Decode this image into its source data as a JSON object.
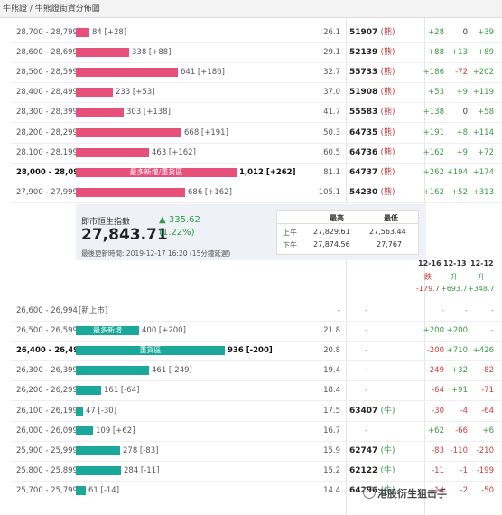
{
  "breadcrumb": "牛熊證 / 牛熊證街貨分佈圖",
  "bear_rows": [
    {
      "range": "28,700 - 28,799",
      "bar_value": 84,
      "bar_label": "84 [+28]",
      "bar_text": "",
      "ratio": "26.1",
      "strike": "51907",
      "tag": "(熊)",
      "c1": "+28",
      "c2": "0",
      "c3": "+39",
      "bold": false
    },
    {
      "range": "28,600 - 28,699",
      "bar_value": 338,
      "bar_label": "338 [+88]",
      "bar_text": "",
      "ratio": "29.1",
      "strike": "52139",
      "tag": "(熊)",
      "c1": "+88",
      "c2": "+13",
      "c3": "+89",
      "bold": false
    },
    {
      "range": "28,500 - 28,599",
      "bar_value": 641,
      "bar_label": "641 [+186]",
      "bar_text": "",
      "ratio": "32.7",
      "strike": "55733",
      "tag": "(熊)",
      "c1": "+186",
      "c2": "-72",
      "c3": "+202",
      "bold": false
    },
    {
      "range": "28,400 - 28,499",
      "bar_value": 233,
      "bar_label": "233 [+53]",
      "bar_text": "",
      "ratio": "37.0",
      "strike": "51908",
      "tag": "(熊)",
      "c1": "+53",
      "c2": "+9",
      "c3": "+119",
      "bold": false
    },
    {
      "range": "28,300 - 28,399",
      "bar_value": 303,
      "bar_label": "303 [+138]",
      "bar_text": "",
      "ratio": "41.7",
      "strike": "55583",
      "tag": "(熊)",
      "c1": "+138",
      "c2": "0",
      "c3": "+58",
      "bold": false
    },
    {
      "range": "28,200 - 28,299",
      "bar_value": 668,
      "bar_label": "668 [+191]",
      "bar_text": "",
      "ratio": "50.3",
      "strike": "64735",
      "tag": "(熊)",
      "c1": "+191",
      "c2": "+8",
      "c3": "+114",
      "bold": false
    },
    {
      "range": "28,100 - 28,199",
      "bar_value": 463,
      "bar_label": "463 [+162]",
      "bar_text": "",
      "ratio": "60.5",
      "strike": "64736",
      "tag": "(熊)",
      "c1": "+162",
      "c2": "+9",
      "c3": "+72",
      "bold": false
    },
    {
      "range": "28,000 - 28,099",
      "bar_value": 1012,
      "bar_label": "1,012 [+262]",
      "bar_text": "最多新增/重貨區",
      "ratio": "81.1",
      "strike": "64737",
      "tag": "(熊)",
      "c1": "+262",
      "c2": "+194",
      "c3": "+174",
      "bold": true
    },
    {
      "range": "27,900 - 27,999",
      "bar_value": 686,
      "bar_label": "686 [+162]",
      "bar_text": "",
      "ratio": "105.1",
      "strike": "54230",
      "tag": "(熊)",
      "c1": "+162",
      "c2": "+52",
      "c3": "+313",
      "bold": false
    }
  ],
  "index_panel": {
    "title": "即市恒生指數",
    "value": "27,843.71",
    "change": "▲ 335.62",
    "pct": "(1.22%)",
    "updated": "最後更新時間: 2019-12-17 16:20 (15分鐘延遲)",
    "high_header": "最高",
    "low_header": "最低",
    "am_label": "上午",
    "pm_label": "下午",
    "am_high": "27,829.61",
    "am_low": "27,563.44",
    "pm_high": "27,874.56",
    "pm_low": "27,767"
  },
  "date_headers": [
    "12-16",
    "12-13",
    "12-12"
  ],
  "date_subheaders": [
    "跌",
    "升",
    "升"
  ],
  "date_values": [
    "-179.7",
    "+693.7",
    "+348.7"
  ],
  "bull_rows": [
    {
      "range": "26,600 - 26,994",
      "bar_value": 0,
      "bar_label": "[新上市]",
      "bar_text": "",
      "ratio": "-",
      "strike": "-",
      "tag": "",
      "c1": "-",
      "c2": "-",
      "c3": "-",
      "bold": false
    },
    {
      "range": "26,500 - 26,599",
      "bar_value": 400,
      "bar_label": "400 [+200]",
      "bar_text": "最多新增",
      "ratio": "21.8",
      "strike": "-",
      "tag": "",
      "c1": "+200",
      "c2": "+200",
      "c3": "-",
      "bold": false
    },
    {
      "range": "26,400 - 26,499",
      "bar_value": 936,
      "bar_label": "936 [-200]",
      "bar_text": "重貨區",
      "ratio": "20.8",
      "strike": "-",
      "tag": "",
      "c1": "-200",
      "c2": "+710",
      "c3": "+426",
      "bold": true
    },
    {
      "range": "26,300 - 26,399",
      "bar_value": 461,
      "bar_label": "461 [-249]",
      "bar_text": "",
      "ratio": "19.4",
      "strike": "-",
      "tag": "",
      "c1": "-249",
      "c2": "+32",
      "c3": "-82",
      "bold": false
    },
    {
      "range": "26,200 - 26,299",
      "bar_value": 161,
      "bar_label": "161 [-64]",
      "bar_text": "",
      "ratio": "18.4",
      "strike": "-",
      "tag": "",
      "c1": "-64",
      "c2": "+91",
      "c3": "-71",
      "bold": false
    },
    {
      "range": "26,100 - 26,199",
      "bar_value": 47,
      "bar_label": "47 [-30]",
      "bar_text": "",
      "ratio": "17.5",
      "strike": "63407",
      "tag": "(牛)",
      "c1": "-30",
      "c2": "-4",
      "c3": "-64",
      "bold": false
    },
    {
      "range": "26,000 - 26,099",
      "bar_value": 109,
      "bar_label": "109 [+62]",
      "bar_text": "",
      "ratio": "16.7",
      "strike": "-",
      "tag": "",
      "c1": "+62",
      "c2": "-66",
      "c3": "+6",
      "bold": false
    },
    {
      "range": "25,900 - 25,999",
      "bar_value": 278,
      "bar_label": "278 [-83]",
      "bar_text": "",
      "ratio": "15.9",
      "strike": "62747",
      "tag": "(牛)",
      "c1": "-83",
      "c2": "-110",
      "c3": "-210",
      "bold": false
    },
    {
      "range": "25,800 - 25,899",
      "bar_value": 284,
      "bar_label": "284 [-11]",
      "bar_text": "",
      "ratio": "15.2",
      "strike": "62122",
      "tag": "(牛)",
      "c1": "-11",
      "c2": "-1",
      "c3": "-199",
      "bold": false
    },
    {
      "range": "25,700 - 25,799",
      "bar_value": 61,
      "bar_label": "61 [-14]",
      "bar_text": "",
      "ratio": "14.4",
      "strike": "64296",
      "tag": "(牛)",
      "c1": "-14",
      "c2": "-2",
      "c3": "-50",
      "bold": false
    }
  ],
  "watermark": "港股衍生狙击手",
  "colors": {
    "bear_bar": "#e8507c",
    "bull_bar": "#1aa89b",
    "positive": "#3a9a46",
    "negative": "#d03a3a"
  }
}
